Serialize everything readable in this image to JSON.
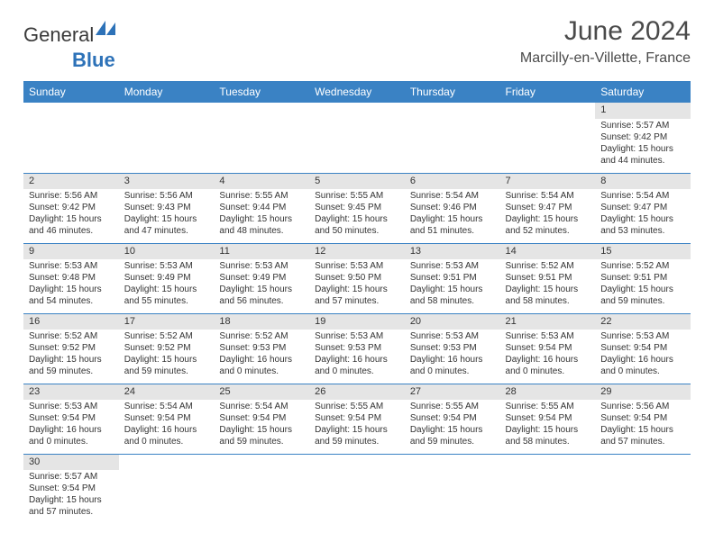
{
  "logo": {
    "part1": "General",
    "part2": "Blue"
  },
  "title": "June 2024",
  "location": "Marcilly-en-Villette, France",
  "colors": {
    "header_bg": "#3a82c4",
    "header_text": "#ffffff",
    "daynum_bg": "#e5e5e5",
    "row_border": "#3a82c4",
    "logo_blue": "#2d72b8"
  },
  "dayNames": [
    "Sunday",
    "Monday",
    "Tuesday",
    "Wednesday",
    "Thursday",
    "Friday",
    "Saturday"
  ],
  "weeks": [
    [
      null,
      null,
      null,
      null,
      null,
      null,
      {
        "n": "1",
        "sr": "5:57 AM",
        "ss": "9:42 PM",
        "dl": "15 hours and 44 minutes."
      }
    ],
    [
      {
        "n": "2",
        "sr": "5:56 AM",
        "ss": "9:42 PM",
        "dl": "15 hours and 46 minutes."
      },
      {
        "n": "3",
        "sr": "5:56 AM",
        "ss": "9:43 PM",
        "dl": "15 hours and 47 minutes."
      },
      {
        "n": "4",
        "sr": "5:55 AM",
        "ss": "9:44 PM",
        "dl": "15 hours and 48 minutes."
      },
      {
        "n": "5",
        "sr": "5:55 AM",
        "ss": "9:45 PM",
        "dl": "15 hours and 50 minutes."
      },
      {
        "n": "6",
        "sr": "5:54 AM",
        "ss": "9:46 PM",
        "dl": "15 hours and 51 minutes."
      },
      {
        "n": "7",
        "sr": "5:54 AM",
        "ss": "9:47 PM",
        "dl": "15 hours and 52 minutes."
      },
      {
        "n": "8",
        "sr": "5:54 AM",
        "ss": "9:47 PM",
        "dl": "15 hours and 53 minutes."
      }
    ],
    [
      {
        "n": "9",
        "sr": "5:53 AM",
        "ss": "9:48 PM",
        "dl": "15 hours and 54 minutes."
      },
      {
        "n": "10",
        "sr": "5:53 AM",
        "ss": "9:49 PM",
        "dl": "15 hours and 55 minutes."
      },
      {
        "n": "11",
        "sr": "5:53 AM",
        "ss": "9:49 PM",
        "dl": "15 hours and 56 minutes."
      },
      {
        "n": "12",
        "sr": "5:53 AM",
        "ss": "9:50 PM",
        "dl": "15 hours and 57 minutes."
      },
      {
        "n": "13",
        "sr": "5:53 AM",
        "ss": "9:51 PM",
        "dl": "15 hours and 58 minutes."
      },
      {
        "n": "14",
        "sr": "5:52 AM",
        "ss": "9:51 PM",
        "dl": "15 hours and 58 minutes."
      },
      {
        "n": "15",
        "sr": "5:52 AM",
        "ss": "9:51 PM",
        "dl": "15 hours and 59 minutes."
      }
    ],
    [
      {
        "n": "16",
        "sr": "5:52 AM",
        "ss": "9:52 PM",
        "dl": "15 hours and 59 minutes."
      },
      {
        "n": "17",
        "sr": "5:52 AM",
        "ss": "9:52 PM",
        "dl": "15 hours and 59 minutes."
      },
      {
        "n": "18",
        "sr": "5:52 AM",
        "ss": "9:53 PM",
        "dl": "16 hours and 0 minutes."
      },
      {
        "n": "19",
        "sr": "5:53 AM",
        "ss": "9:53 PM",
        "dl": "16 hours and 0 minutes."
      },
      {
        "n": "20",
        "sr": "5:53 AM",
        "ss": "9:53 PM",
        "dl": "16 hours and 0 minutes."
      },
      {
        "n": "21",
        "sr": "5:53 AM",
        "ss": "9:54 PM",
        "dl": "16 hours and 0 minutes."
      },
      {
        "n": "22",
        "sr": "5:53 AM",
        "ss": "9:54 PM",
        "dl": "16 hours and 0 minutes."
      }
    ],
    [
      {
        "n": "23",
        "sr": "5:53 AM",
        "ss": "9:54 PM",
        "dl": "16 hours and 0 minutes."
      },
      {
        "n": "24",
        "sr": "5:54 AM",
        "ss": "9:54 PM",
        "dl": "16 hours and 0 minutes."
      },
      {
        "n": "25",
        "sr": "5:54 AM",
        "ss": "9:54 PM",
        "dl": "15 hours and 59 minutes."
      },
      {
        "n": "26",
        "sr": "5:55 AM",
        "ss": "9:54 PM",
        "dl": "15 hours and 59 minutes."
      },
      {
        "n": "27",
        "sr": "5:55 AM",
        "ss": "9:54 PM",
        "dl": "15 hours and 59 minutes."
      },
      {
        "n": "28",
        "sr": "5:55 AM",
        "ss": "9:54 PM",
        "dl": "15 hours and 58 minutes."
      },
      {
        "n": "29",
        "sr": "5:56 AM",
        "ss": "9:54 PM",
        "dl": "15 hours and 57 minutes."
      }
    ],
    [
      {
        "n": "30",
        "sr": "5:57 AM",
        "ss": "9:54 PM",
        "dl": "15 hours and 57 minutes."
      },
      null,
      null,
      null,
      null,
      null,
      null
    ]
  ],
  "labels": {
    "sunrise": "Sunrise:",
    "sunset": "Sunset:",
    "daylight": "Daylight:"
  }
}
